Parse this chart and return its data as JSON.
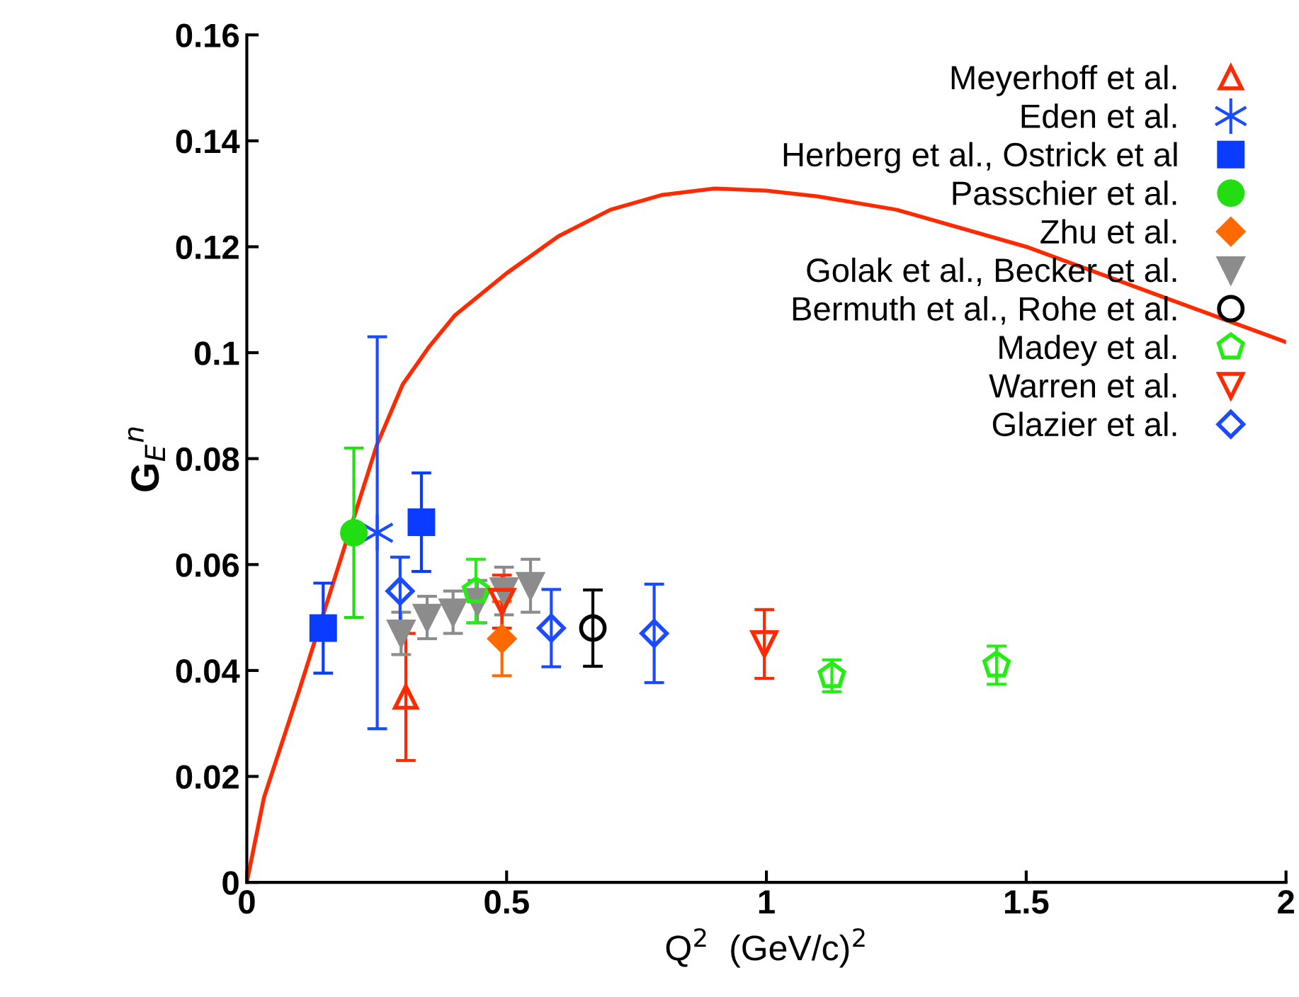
{
  "chart_data": {
    "type": "scatter",
    "xlabel": "Q$^{2}$  (GeV/c)$^{2}$",
    "ylabel": "G$_{E}$$^{n}$",
    "xlim": [
      0,
      2
    ],
    "ylim": [
      0,
      0.16
    ],
    "xticks": [
      0,
      0.5,
      1,
      1.5,
      2
    ],
    "yticks": [
      0,
      0.02,
      0.04,
      0.06,
      0.08,
      0.1,
      0.12,
      0.14,
      0.16
    ],
    "grid": false,
    "legend": "top right",
    "series": [
      {
        "type": "line",
        "color": "#ff2a00",
        "x": [
          0,
          0.033,
          0.1,
          0.25,
          0.3,
          0.35,
          0.4,
          0.5,
          0.6,
          0.7,
          0.8,
          0.9,
          1.0,
          1.1,
          1.25,
          1.5,
          1.75,
          2.0
        ],
        "values": [
          0,
          0.016,
          0.036,
          0.0825,
          0.094,
          0.101,
          0.107,
          0.115,
          0.122,
          0.127,
          0.1298,
          0.131,
          0.1306,
          0.1295,
          0.127,
          0.12,
          0.111,
          0.102
        ],
        "marker": "none"
      },
      {
        "name": "Meyerhoff et al.",
        "color": "#ff2a00",
        "marker": "triangle-open",
        "x": [
          0.306
        ],
        "values": [
          0.035
        ],
        "errors": [
          0.012
        ]
      },
      {
        "name": "Eden et al.",
        "color": "#1a4bff",
        "marker": "cross",
        "x": [
          0.251
        ],
        "values": [
          0.066
        ],
        "errors": [
          0.037
        ]
      },
      {
        "name": "Herberg et al., Ostrick et al",
        "color": "#0a3cff",
        "marker": "square",
        "x": [
          0.147,
          0.336
        ],
        "values": [
          0.048,
          0.068
        ],
        "errors": [
          0.0085,
          0.0093
        ]
      },
      {
        "name": "Passchier et al.",
        "color": "#22dd11",
        "marker": "circle",
        "x": [
          0.206
        ],
        "values": [
          0.066
        ],
        "errors": [
          0.016
        ]
      },
      {
        "name": "Zhu et al.",
        "color": "#ff6a00",
        "marker": "diamond",
        "x": [
          0.491
        ],
        "values": [
          0.046
        ],
        "errors": [
          0.007
        ]
      },
      {
        "name": "Golak et al., Becker et al.",
        "color": "#8c8c8c",
        "marker": "triangle-down",
        "x": [
          0.297,
          0.347,
          0.397,
          0.444,
          0.495,
          0.546
        ],
        "values": [
          0.047,
          0.05,
          0.051,
          0.053,
          0.055,
          0.056
        ],
        "errors": [
          0.004,
          0.004,
          0.004,
          0.004,
          0.0045,
          0.005
        ]
      },
      {
        "name": "Bermuth et al., Rohe et al.",
        "color": "#000000",
        "marker": "circle-open",
        "x": [
          0.666
        ],
        "values": [
          0.048
        ],
        "errors": [
          0.0072
        ]
      },
      {
        "name": "Madey et al.",
        "color": "#22ee11",
        "x": [
          0.441,
          1.126,
          1.443
        ],
        "values": [
          0.055,
          0.039,
          0.041
        ],
        "errors": [
          0.006,
          0.003,
          0.0036
        ]
      },
      {
        "name": "Warren et al.",
        "color": "#ff2a00",
        "marker": "triangle-down-open",
        "x": [
          0.491,
          0.996
        ],
        "values": [
          0.053,
          0.045
        ],
        "errors": [
          0.005,
          0.0065
        ]
      },
      {
        "name": "Glazier et al.",
        "color": "#1a4bff",
        "marker": "diamond-open",
        "x": [
          0.295,
          0.586,
          0.784
        ],
        "values": [
          0.055,
          0.048,
          0.047
        ],
        "errors": [
          0.0064,
          0.0073,
          0.0093
        ]
      }
    ]
  }
}
